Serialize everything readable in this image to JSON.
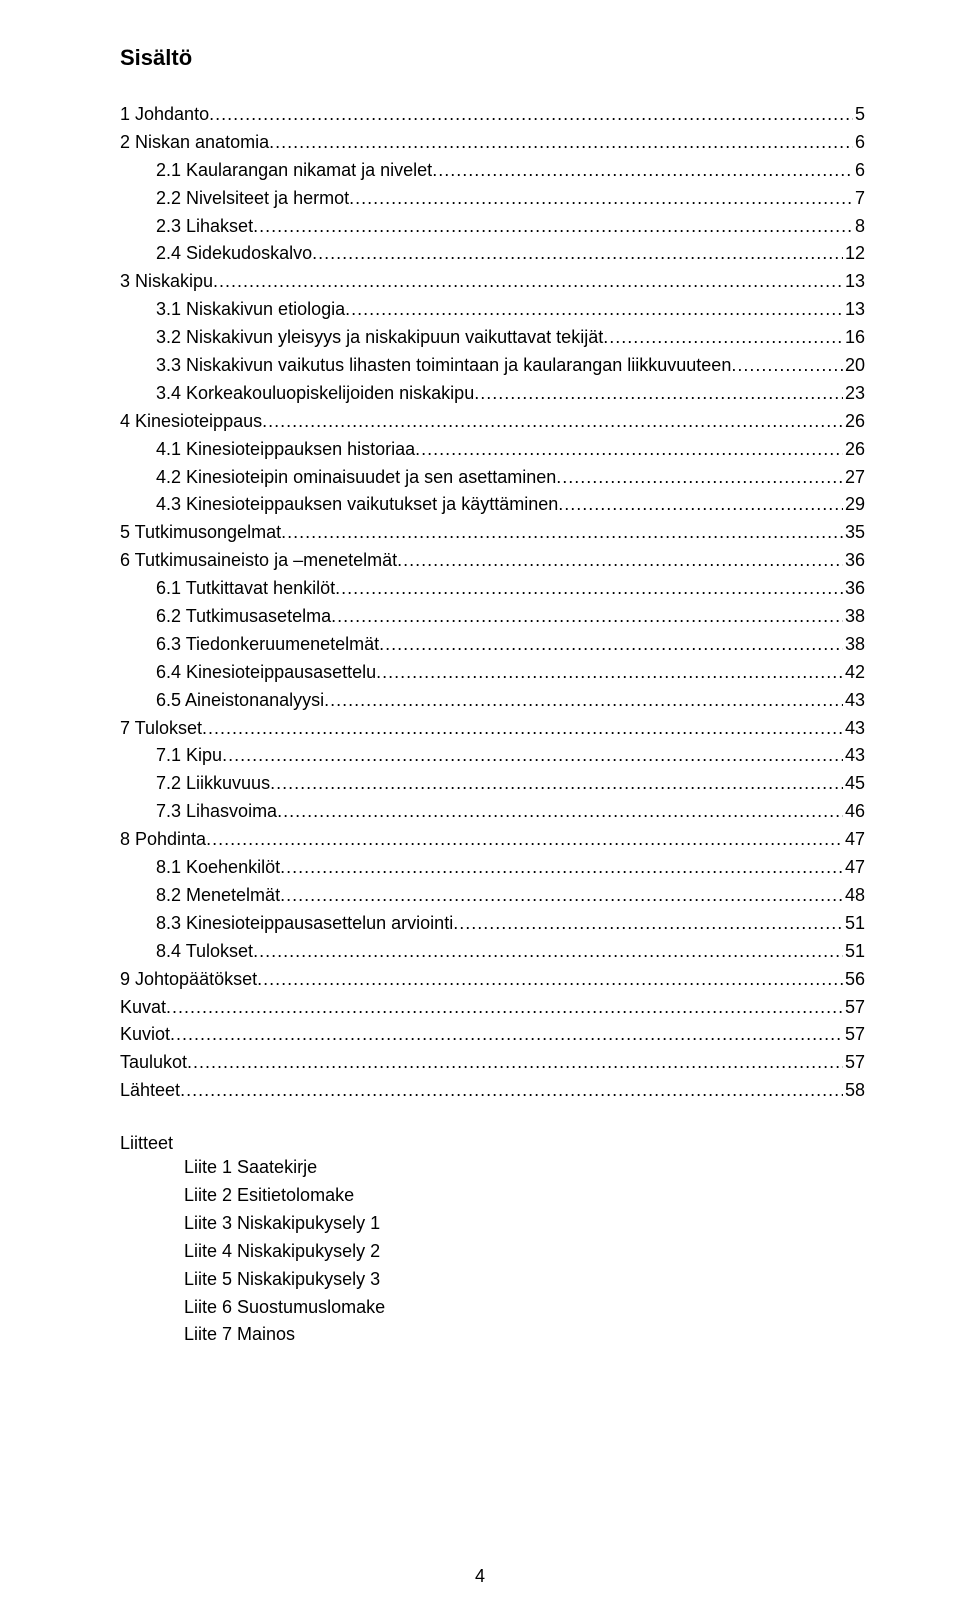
{
  "title": "Sisältö",
  "pageNumber": "4",
  "toc": [
    {
      "label": "1 Johdanto",
      "page": "5",
      "level": 0
    },
    {
      "label": "2 Niskan anatomia",
      "page": "6",
      "level": 0
    },
    {
      "label": "2.1 Kaularangan nikamat ja nivelet",
      "page": "6",
      "level": 1
    },
    {
      "label": "2.2 Nivelsiteet ja hermot",
      "page": "7",
      "level": 1
    },
    {
      "label": "2.3 Lihakset",
      "page": "8",
      "level": 1
    },
    {
      "label": "2.4 Sidekudoskalvo",
      "page": "12",
      "level": 1
    },
    {
      "label": "3 Niskakipu",
      "page": "13",
      "level": 0
    },
    {
      "label": "3.1 Niskakivun etiologia",
      "page": "13",
      "level": 1
    },
    {
      "label": "3.2 Niskakivun yleisyys ja niskakipuun vaikuttavat tekijät",
      "page": "16",
      "level": 1
    },
    {
      "label": "3.3 Niskakivun vaikutus lihasten toimintaan ja kaularangan liikkuvuuteen",
      "page": "20",
      "level": 1
    },
    {
      "label": "3.4 Korkeakouluopiskelijoiden niskakipu",
      "page": "23",
      "level": 1
    },
    {
      "label": "4 Kinesioteippaus",
      "page": "26",
      "level": 0
    },
    {
      "label": "4.1 Kinesioteippauksen historiaa",
      "page": "26",
      "level": 1
    },
    {
      "label": "4.2 Kinesioteipin ominaisuudet ja sen asettaminen",
      "page": "27",
      "level": 1
    },
    {
      "label": "4.3 Kinesioteippauksen vaikutukset ja käyttäminen",
      "page": "29",
      "level": 1
    },
    {
      "label": "5 Tutkimusongelmat",
      "page": "35",
      "level": 0
    },
    {
      "label": "6 Tutkimusaineisto ja –menetelmät",
      "page": "36",
      "level": 0
    },
    {
      "label": "6.1 Tutkittavat henkilöt",
      "page": "36",
      "level": 1
    },
    {
      "label": "6.2 Tutkimusasetelma",
      "page": "38",
      "level": 1
    },
    {
      "label": "6.3 Tiedonkeruumenetelmät",
      "page": "38",
      "level": 1
    },
    {
      "label": "6.4 Kinesioteippausasettelu",
      "page": "42",
      "level": 1
    },
    {
      "label": "6.5 Aineistonanalyysi",
      "page": "43",
      "level": 1
    },
    {
      "label": "7 Tulokset",
      "page": "43",
      "level": 0
    },
    {
      "label": "7.1 Kipu",
      "page": "43",
      "level": 1
    },
    {
      "label": "7.2 Liikkuvuus",
      "page": "45",
      "level": 1
    },
    {
      "label": "7.3 Lihasvoima",
      "page": "46",
      "level": 1
    },
    {
      "label": "8 Pohdinta",
      "page": "47",
      "level": 0
    },
    {
      "label": "8.1 Koehenkilöt",
      "page": "47",
      "level": 1
    },
    {
      "label": "8.2 Menetelmät",
      "page": "48",
      "level": 1
    },
    {
      "label": "8.3 Kinesioteippausasettelun arviointi",
      "page": "51",
      "level": 1
    },
    {
      "label": "8.4 Tulokset",
      "page": "51",
      "level": 1
    },
    {
      "label": "9 Johtopäätökset",
      "page": "56",
      "level": 0
    },
    {
      "label": "Kuvat",
      "page": "57",
      "level": 0
    },
    {
      "label": "Kuviot",
      "page": "57",
      "level": 0
    },
    {
      "label": "Taulukot",
      "page": "57",
      "level": 0
    },
    {
      "label": "Lähteet",
      "page": "58",
      "level": 0
    }
  ],
  "attachmentsHeading": "Liitteet",
  "attachments": [
    "Liite 1 Saatekirje",
    "Liite 2 Esitietolomake",
    "Liite 3 Niskakipukysely 1",
    "Liite 4 Niskakipukysely 2",
    "Liite 5 Niskakipukysely 3",
    "Liite 6 Suostumuslomake",
    "Liite 7 Mainos"
  ]
}
